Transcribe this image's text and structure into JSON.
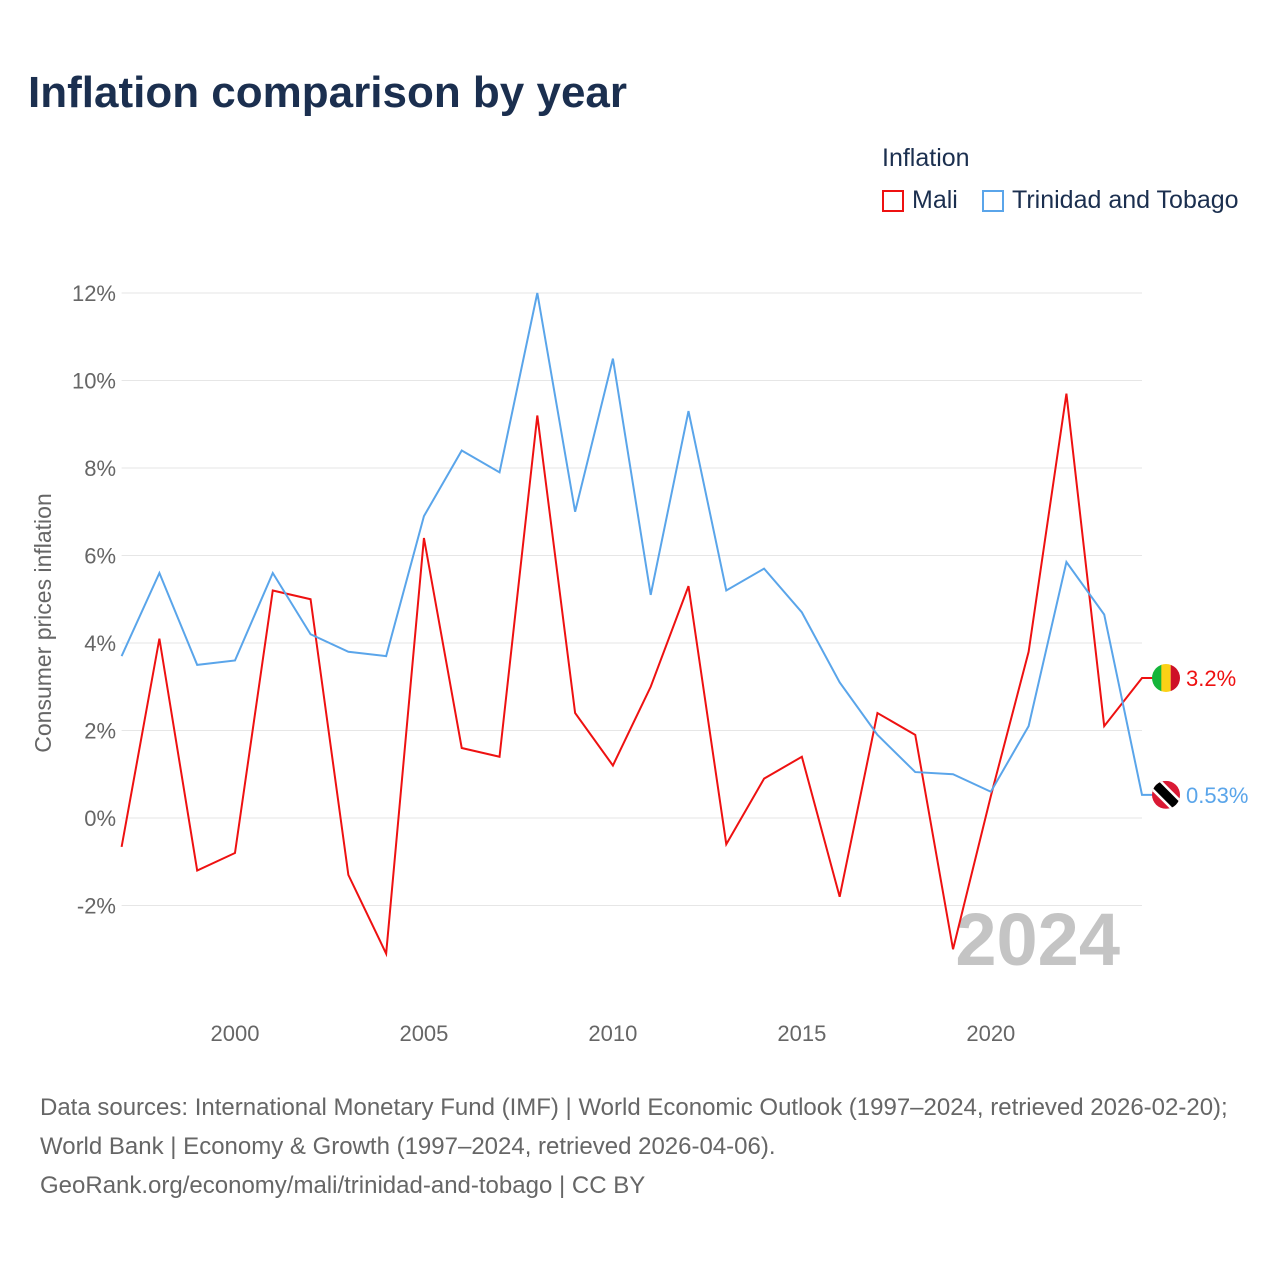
{
  "title": "Inflation comparison by year",
  "legend": {
    "title": "Inflation",
    "items": [
      {
        "name": "Mali",
        "color": "#ee1111"
      },
      {
        "name": "Trinidad and Tobago",
        "color": "#5aa5ea"
      }
    ]
  },
  "source": {
    "line1": "Data sources: International Monetary Fund (IMF) | World Economic Outlook (1997–2024, retrieved 2026-02-20); World Bank | Economy & Growth (1997–2024, retrieved 2026-04-06).",
    "line2": "GeoRank.org/economy/mali/trinidad-and-tobago | CC BY"
  },
  "chart_data": {
    "type": "line",
    "title": "Inflation comparison by year",
    "ylabel": "Consumer prices inflation",
    "xlabel": "",
    "ylim": [
      -3.9,
      12.5
    ],
    "xlim": [
      1997,
      2024
    ],
    "yticks": [
      -2,
      0,
      2,
      4,
      6,
      8,
      10,
      12
    ],
    "ytick_labels": [
      "-2%",
      "0%",
      "2%",
      "4%",
      "6%",
      "8%",
      "10%",
      "12%"
    ],
    "xticks": [
      2000,
      2005,
      2010,
      2015,
      2020
    ],
    "xtick_labels": [
      "2000",
      "2005",
      "2010",
      "2015",
      "2020"
    ],
    "watermark": "2024",
    "grid": true,
    "legend_position": "top-right",
    "x": [
      1997,
      1998,
      1999,
      2000,
      2001,
      2002,
      2003,
      2004,
      2005,
      2006,
      2007,
      2008,
      2009,
      2010,
      2011,
      2012,
      2013,
      2014,
      2015,
      2016,
      2017,
      2018,
      2019,
      2020,
      2021,
      2022,
      2023,
      2024
    ],
    "series": [
      {
        "name": "Mali",
        "color": "#ee1111",
        "end_label": "3.2%",
        "values": [
          -0.66,
          4.1,
          -1.2,
          -0.8,
          5.2,
          5.0,
          -1.3,
          -3.1,
          6.4,
          1.6,
          1.4,
          9.2,
          2.4,
          1.2,
          3.0,
          5.3,
          -0.6,
          0.9,
          1.4,
          -1.8,
          2.4,
          1.9,
          -3.0,
          0.5,
          3.8,
          9.7,
          2.1,
          3.2
        ]
      },
      {
        "name": "Trinidad and Tobago",
        "color": "#5aa5ea",
        "end_label": "0.53%",
        "values": [
          3.7,
          5.6,
          3.5,
          3.6,
          5.6,
          4.2,
          3.8,
          3.7,
          6.9,
          8.4,
          7.9,
          12.0,
          7.0,
          10.5,
          5.1,
          9.3,
          5.2,
          5.7,
          4.7,
          3.1,
          1.9,
          1.05,
          1.0,
          0.6,
          2.1,
          5.85,
          4.65,
          0.53
        ]
      }
    ]
  }
}
